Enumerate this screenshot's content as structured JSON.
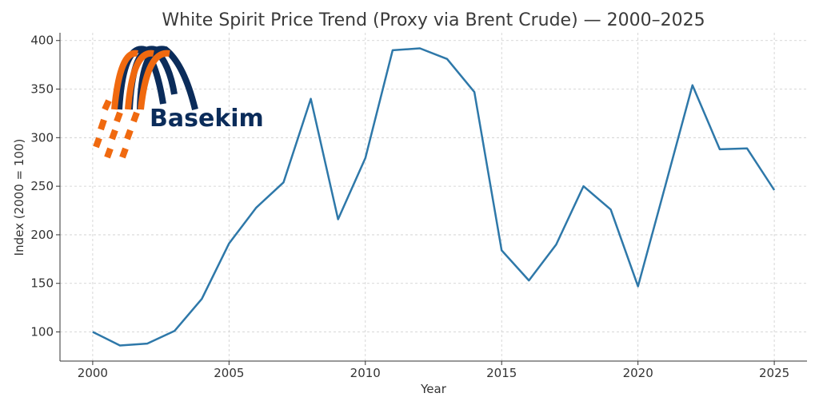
{
  "chart_data": {
    "type": "line",
    "title": "White Spirit Price Trend (Proxy via Brent Crude) — 2000–2025",
    "xlabel": "Year",
    "ylabel": "Index (2000 = 100)",
    "xlim": [
      1998.8,
      2026.2
    ],
    "ylim": [
      70,
      408
    ],
    "xticks": [
      2000,
      2005,
      2010,
      2015,
      2020,
      2025
    ],
    "yticks": [
      100,
      150,
      200,
      250,
      300,
      350,
      400
    ],
    "grid": true,
    "series": [
      {
        "color": "#2e78a9",
        "x": [
          2000,
          2001,
          2002,
          2003,
          2004,
          2005,
          2006,
          2007,
          2008,
          2009,
          2010,
          2011,
          2012,
          2013,
          2014,
          2015,
          2016,
          2017,
          2018,
          2019,
          2020,
          2021,
          2022,
          2023,
          2024,
          2025
        ],
        "y": [
          100,
          86,
          88,
          101,
          134,
          191,
          228,
          254,
          340,
          216,
          279,
          390,
          392,
          381,
          347,
          184,
          153,
          190,
          250,
          226,
          147,
          250,
          354,
          288,
          289,
          246
        ]
      }
    ]
  },
  "logo": {
    "text": "Basekim",
    "text_color": "#0b2c5a",
    "accent_color": "#f0690f"
  }
}
